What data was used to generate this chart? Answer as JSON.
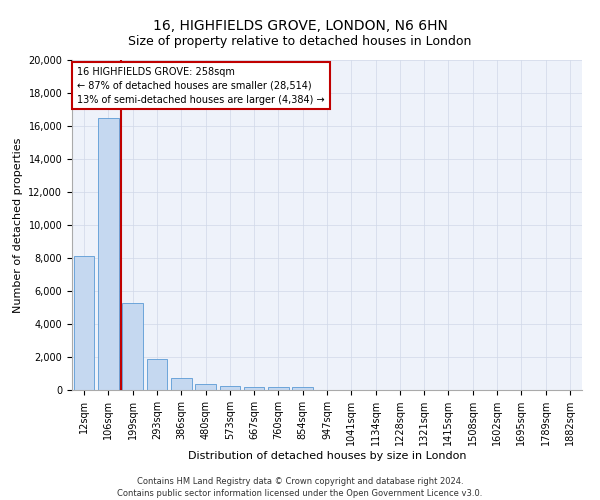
{
  "title": "16, HIGHFIELDS GROVE, LONDON, N6 6HN",
  "subtitle": "Size of property relative to detached houses in London",
  "xlabel": "Distribution of detached houses by size in London",
  "ylabel": "Number of detached properties",
  "footnote1": "Contains HM Land Registry data © Crown copyright and database right 2024.",
  "footnote2": "Contains public sector information licensed under the Open Government Licence v3.0.",
  "annotation_line1": "16 HIGHFIELDS GROVE: 258sqm",
  "annotation_line2": "← 87% of detached houses are smaller (28,514)",
  "annotation_line3": "13% of semi-detached houses are larger (4,384) →",
  "bar_labels": [
    "12sqm",
    "106sqm",
    "199sqm",
    "293sqm",
    "386sqm",
    "480sqm",
    "573sqm",
    "667sqm",
    "760sqm",
    "854sqm",
    "947sqm",
    "1041sqm",
    "1134sqm",
    "1228sqm",
    "1321sqm",
    "1415sqm",
    "1508sqm",
    "1602sqm",
    "1695sqm",
    "1789sqm",
    "1882sqm"
  ],
  "bar_values": [
    8100,
    16500,
    5300,
    1850,
    700,
    350,
    270,
    210,
    180,
    200,
    0,
    0,
    0,
    0,
    0,
    0,
    0,
    0,
    0,
    0,
    0
  ],
  "bar_color": "#c5d8f0",
  "bar_edge_color": "#5b9bd5",
  "highlight_color": "#c00000",
  "ylim": [
    0,
    20000
  ],
  "yticks": [
    0,
    2000,
    4000,
    6000,
    8000,
    10000,
    12000,
    14000,
    16000,
    18000,
    20000
  ],
  "grid_color": "#d0d8e8",
  "background_color": "#eef2fa",
  "title_fontsize": 10,
  "subtitle_fontsize": 9,
  "axis_label_fontsize": 8,
  "tick_fontsize": 7,
  "red_line_x": 2.0
}
